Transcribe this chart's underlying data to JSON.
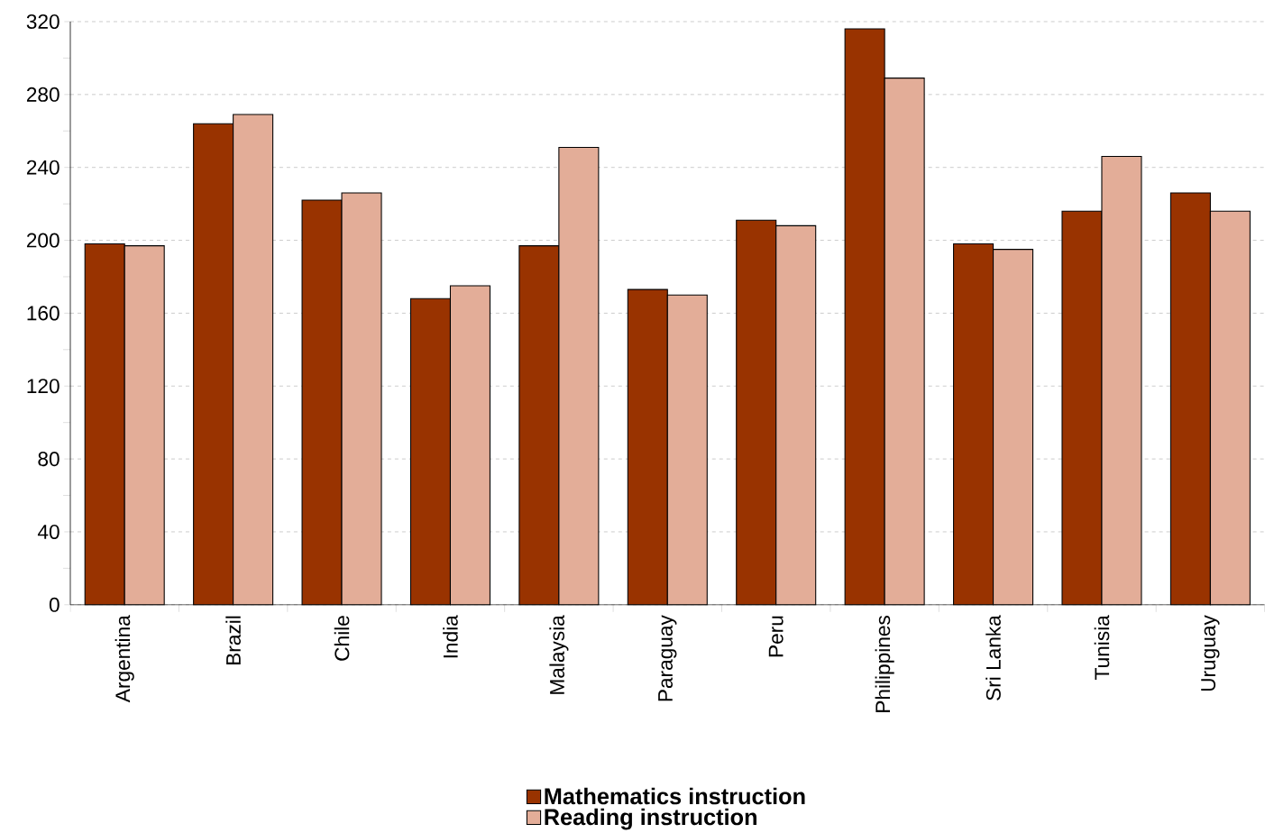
{
  "chart_data": {
    "type": "bar",
    "categories": [
      "Argentina",
      "Brazil",
      "Chile",
      "India",
      "Malaysia",
      "Paraguay",
      "Peru",
      "Philippines",
      "Sri Lanka",
      "Tunisia",
      "Uruguay"
    ],
    "series": [
      {
        "name": "Mathematics instruction",
        "color": "#993300",
        "values": [
          198,
          264,
          222,
          168,
          197,
          173,
          211,
          316,
          198,
          216,
          226
        ]
      },
      {
        "name": "Reading instruction",
        "color": "#e3ad98",
        "values": [
          197,
          269,
          226,
          175,
          251,
          170,
          208,
          289,
          195,
          246,
          216
        ]
      }
    ],
    "ylim": [
      0,
      320
    ],
    "yticks": [
      0,
      40,
      80,
      120,
      160,
      200,
      240,
      280,
      320
    ],
    "grid": "y",
    "legend": "bottom"
  }
}
